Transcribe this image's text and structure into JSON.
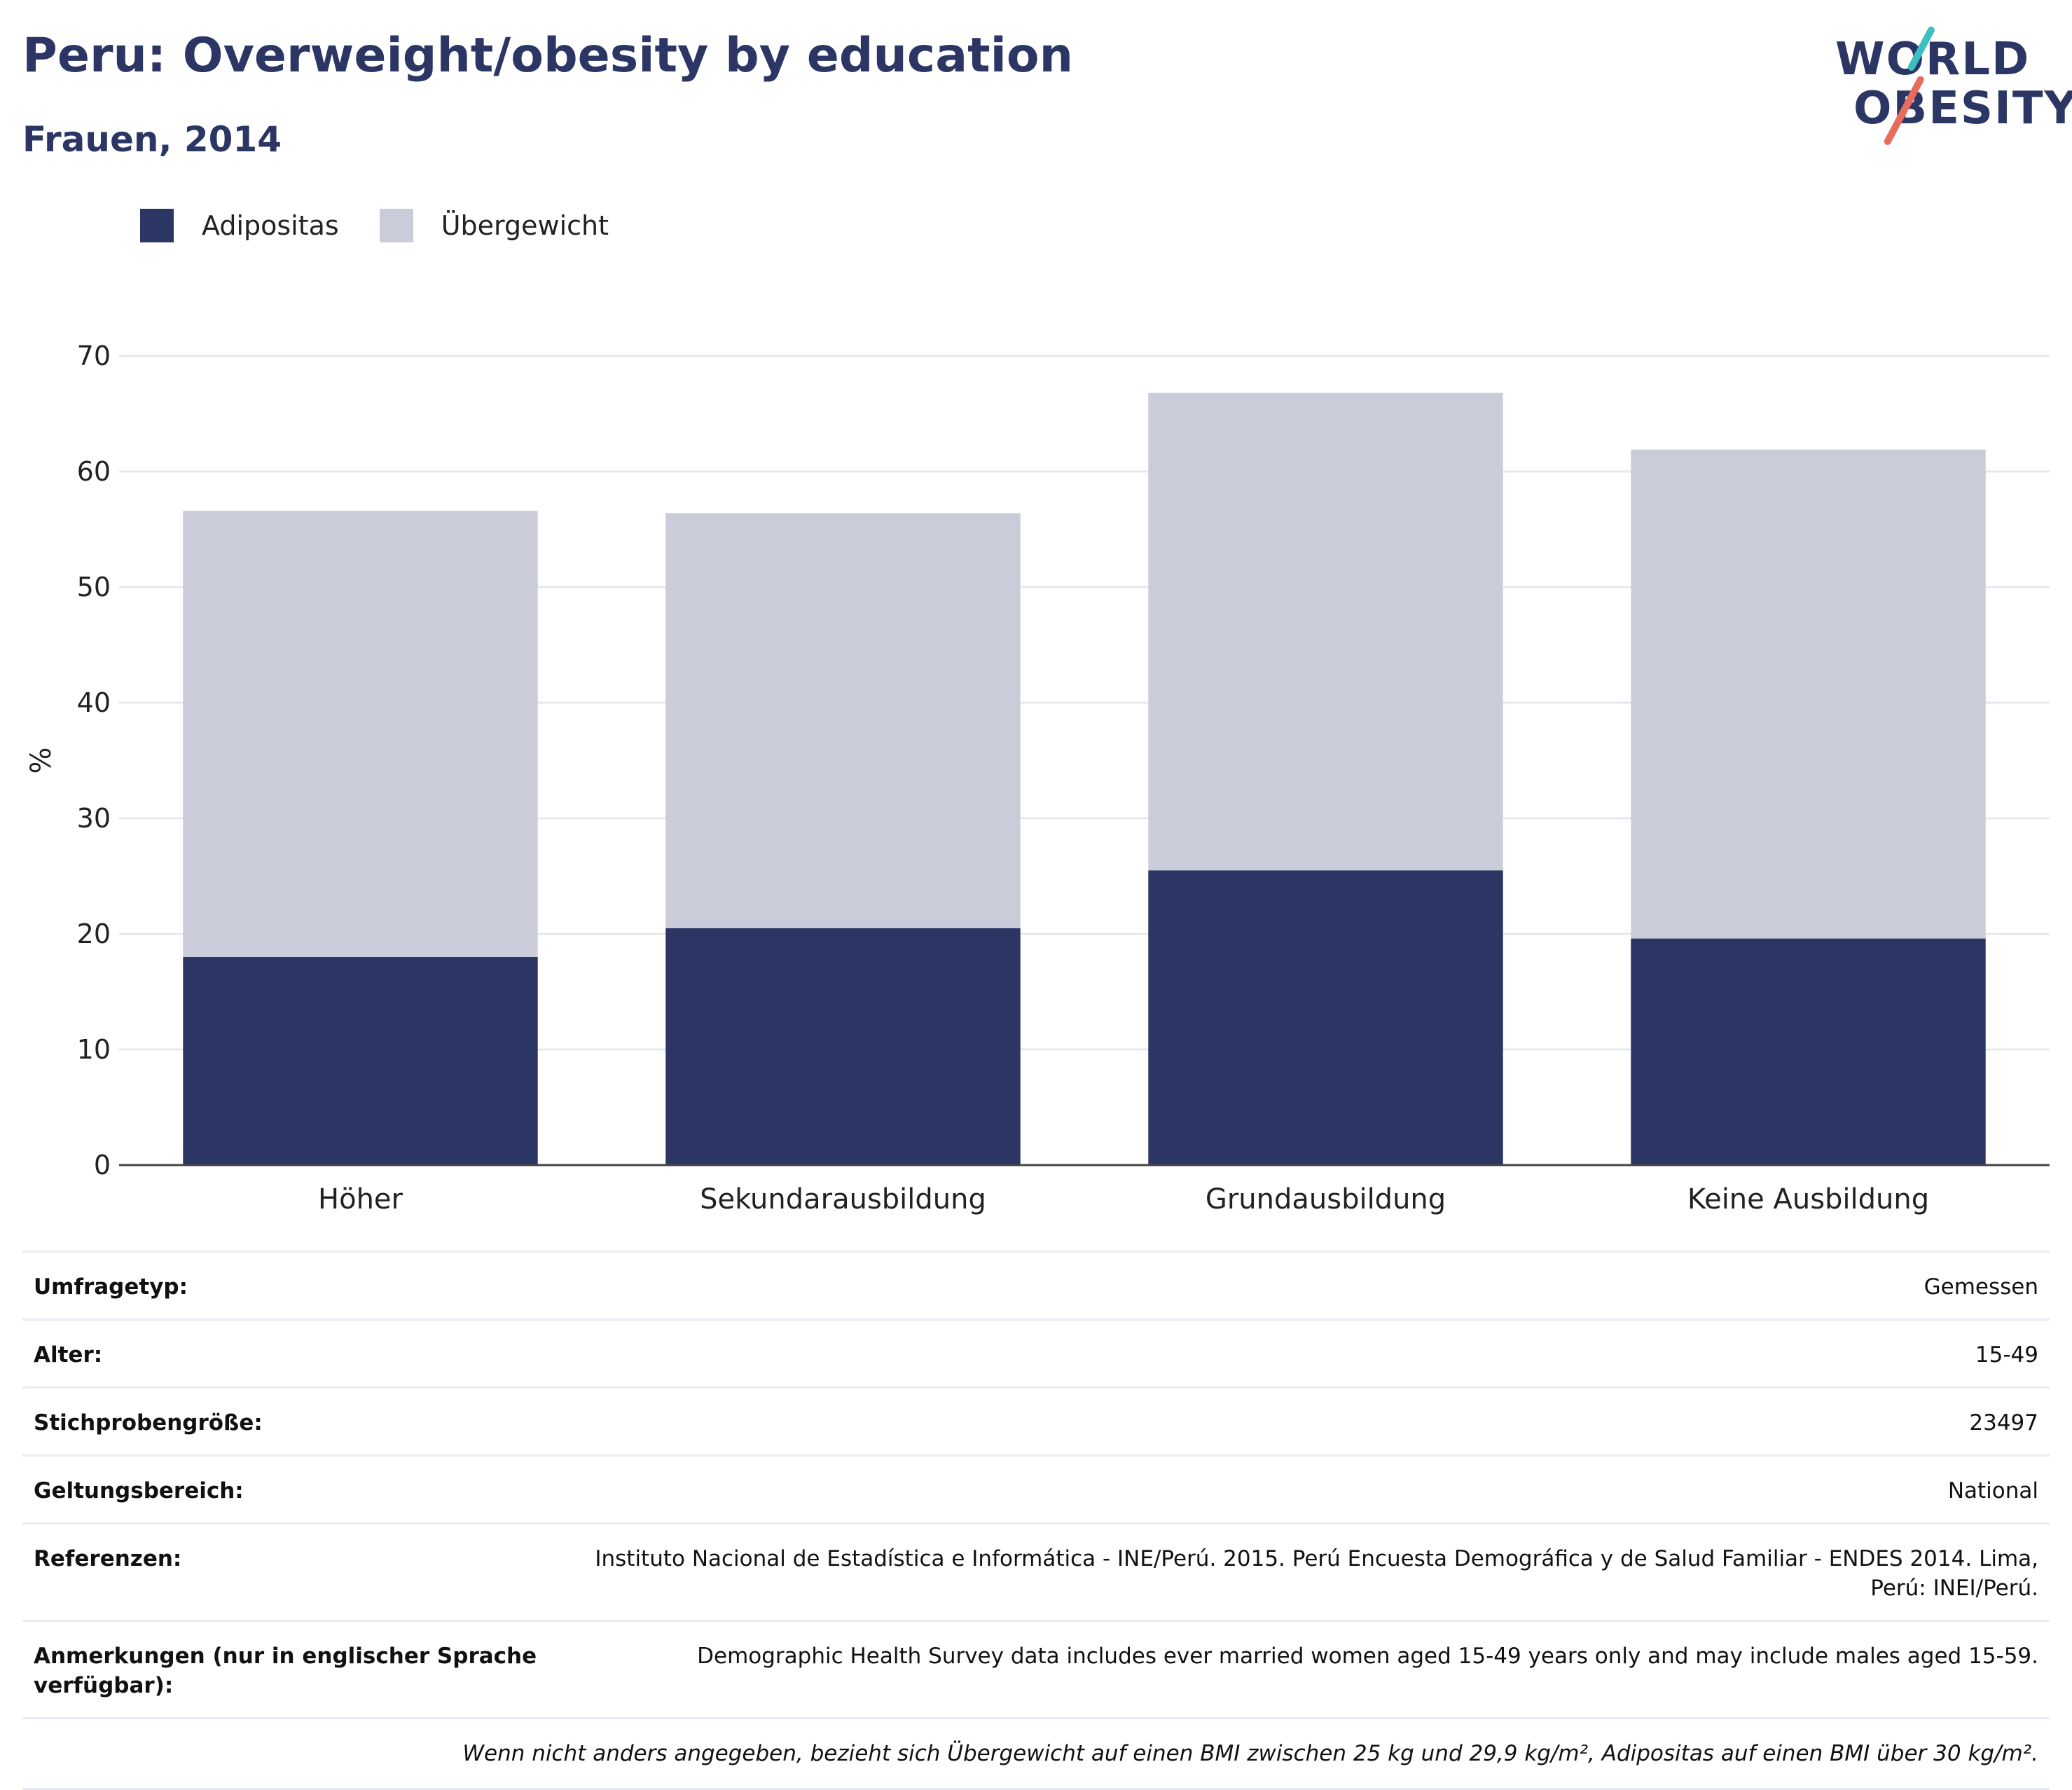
{
  "header": {
    "title": "Peru: Overweight/obesity by education",
    "subtitle": "Frauen, 2014"
  },
  "logo": {
    "line1": "WORLD",
    "line2": "OBESITY",
    "slash_colors": [
      "#3cbfc0",
      "#e96b5c"
    ]
  },
  "colors": {
    "obesity": "#2b3664",
    "overweight": "#cacdd9",
    "grid": "#e6e8ee",
    "axis": "#444444"
  },
  "chart_data": {
    "type": "bar",
    "stacked": true,
    "categories": [
      "Höher",
      "Sekundarausbildung",
      "Grundausbildung",
      "Keine Ausbildung"
    ],
    "series": [
      {
        "name": "Adipositas",
        "values": [
          18.0,
          20.5,
          25.5,
          19.6
        ],
        "color": "#2b3664"
      },
      {
        "name": "Übergewicht",
        "values": [
          38.6,
          35.9,
          41.3,
          42.3
        ],
        "color": "#cacdd9"
      }
    ],
    "ylabel": "%",
    "ylim": [
      0,
      70
    ],
    "yticks": [
      0,
      10,
      20,
      30,
      40,
      50,
      60,
      70
    ],
    "grid": true,
    "legend_position": "top-left"
  },
  "info": {
    "rows": [
      {
        "key": "Umfragetyp:",
        "value": "Gemessen"
      },
      {
        "key": "Alter:",
        "value": "15-49"
      },
      {
        "key": "Stichprobengröße:",
        "value": "23497"
      },
      {
        "key": "Geltungsbereich:",
        "value": "National"
      },
      {
        "key": "Referenzen:",
        "value": "Instituto Nacional de Estadística e Informática - INE/Perú. 2015. Perú Encuesta Demográfica y de Salud Familiar - ENDES 2014. Lima, Perú: INEI/Perú."
      },
      {
        "key": "Anmerkungen (nur in englischer Sprache verfügbar):",
        "value": "Demographic Health Survey data includes ever married women aged 15-49 years only and may include males aged 15-59."
      }
    ],
    "footnote": "Wenn nicht anders angegeben, bezieht sich Übergewicht auf einen BMI zwischen 25 kg und 29,9 kg/m², Adipositas auf einen BMI über 30 kg/m²."
  }
}
